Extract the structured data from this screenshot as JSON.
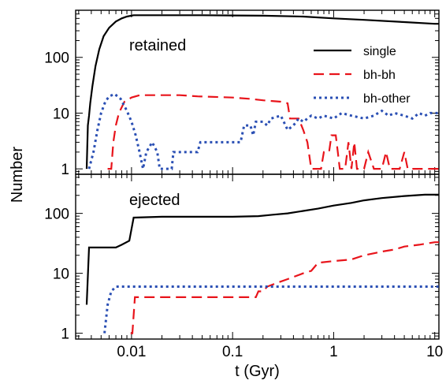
{
  "chart_data": {
    "type": "line",
    "xlabel": "t (Gyr)",
    "ylabel": "Number",
    "xscale": "log",
    "yscale": "log",
    "xlim": [
      0.0028,
      11
    ],
    "x_ticks": [
      {
        "value": 0.01,
        "label": "0.01"
      },
      {
        "value": 0.1,
        "label": "0.1"
      },
      {
        "value": 1,
        "label": "1"
      },
      {
        "value": 10,
        "label": "10"
      }
    ],
    "y_ticks": [
      {
        "value": 1,
        "label": "1"
      },
      {
        "value": 10,
        "label": "10"
      },
      {
        "value": 100,
        "label": "100"
      }
    ],
    "colors": {
      "single": "#000000",
      "bh-bh": "#e8141b",
      "bh-other": "#2a4fb4"
    },
    "legend": {
      "placement": "top-right",
      "entries": [
        {
          "label": "single",
          "style": "solid",
          "color": "#000000"
        },
        {
          "label": "bh-bh",
          "style": "dashed",
          "color": "#e8141b"
        },
        {
          "label": "bh-other",
          "style": "dotted",
          "color": "#2a4fb4"
        }
      ]
    },
    "panels": [
      {
        "label": "retained",
        "ylim": [
          0.8,
          700
        ],
        "series": [
          {
            "key": "single",
            "style": "solid",
            "color": "#000000",
            "points": [
              [
                0.0036,
                1
              ],
              [
                0.0037,
                6
              ],
              [
                0.0038,
                9
              ],
              [
                0.0039,
                15
              ],
              [
                0.0041,
                30
              ],
              [
                0.0044,
                70
              ],
              [
                0.0048,
                140
              ],
              [
                0.0053,
                240
              ],
              [
                0.006,
                340
              ],
              [
                0.007,
                440
              ],
              [
                0.008,
                500
              ],
              [
                0.009,
                540
              ],
              [
                0.0105,
                570
              ],
              [
                0.02,
                570
              ],
              [
                0.05,
                570
              ],
              [
                0.1,
                565
              ],
              [
                0.2,
                560
              ],
              [
                0.5,
                540
              ],
              [
                1,
                500
              ],
              [
                2,
                470
              ],
              [
                5,
                430
              ],
              [
                10,
                400
              ],
              [
                11,
                400
              ]
            ]
          },
          {
            "key": "bh-bh",
            "style": "dashed",
            "color": "#e8141b",
            "points": [
              [
                0.0058,
                1
              ],
              [
                0.0063,
                1
              ],
              [
                0.0066,
                3
              ],
              [
                0.007,
                6
              ],
              [
                0.0075,
                10
              ],
              [
                0.0085,
                16
              ],
              [
                0.01,
                19
              ],
              [
                0.012,
                21
              ],
              [
                0.03,
                21
              ],
              [
                0.045,
                20
              ],
              [
                0.1,
                19
              ],
              [
                0.15,
                18
              ],
              [
                0.2,
                17
              ],
              [
                0.3,
                16
              ],
              [
                0.35,
                15
              ],
              [
                0.37,
                8
              ],
              [
                0.45,
                8
              ],
              [
                0.5,
                5
              ],
              [
                0.55,
                3
              ],
              [
                0.6,
                1
              ],
              [
                0.75,
                1
              ],
              [
                0.8,
                2
              ],
              [
                0.85,
                2
              ],
              [
                0.9,
                2
              ],
              [
                0.95,
                4
              ],
              [
                1.05,
                4
              ],
              [
                1.1,
                2
              ],
              [
                1.15,
                1
              ],
              [
                1.3,
                1
              ],
              [
                1.4,
                3
              ],
              [
                1.5,
                1
              ],
              [
                1.6,
                3
              ],
              [
                1.7,
                1
              ],
              [
                2,
                1
              ],
              [
                2.2,
                2
              ],
              [
                2.5,
                1
              ],
              [
                3,
                1
              ],
              [
                3.3,
                2
              ],
              [
                3.6,
                1
              ],
              [
                4.5,
                1
              ],
              [
                5,
                2
              ],
              [
                5.4,
                1
              ],
              [
                10,
                1
              ],
              [
                11,
                1
              ]
            ]
          },
          {
            "key": "bh-other",
            "style": "dotted",
            "color": "#2a4fb4",
            "points": [
              [
                0.0038,
                1
              ],
              [
                0.0042,
                2
              ],
              [
                0.0046,
                5
              ],
              [
                0.005,
                10
              ],
              [
                0.0055,
                16
              ],
              [
                0.006,
                20
              ],
              [
                0.0068,
                22
              ],
              [
                0.0078,
                18
              ],
              [
                0.009,
                11
              ],
              [
                0.01,
                7
              ],
              [
                0.011,
                4
              ],
              [
                0.012,
                2
              ],
              [
                0.013,
                1
              ],
              [
                0.014,
                2
              ],
              [
                0.016,
                3
              ],
              [
                0.018,
                2
              ],
              [
                0.019,
                1
              ],
              [
                0.025,
                1
              ],
              [
                0.026,
                2
              ],
              [
                0.045,
                2
              ],
              [
                0.048,
                3
              ],
              [
                0.12,
                3
              ],
              [
                0.13,
                6
              ],
              [
                0.15,
                6
              ],
              [
                0.16,
                4
              ],
              [
                0.17,
                7
              ],
              [
                0.2,
                7
              ],
              [
                0.22,
                6
              ],
              [
                0.24,
                8
              ],
              [
                0.3,
                9
              ],
              [
                0.35,
                5
              ],
              [
                0.4,
                6
              ],
              [
                0.45,
                8
              ],
              [
                0.5,
                7
              ],
              [
                0.6,
                9
              ],
              [
                0.7,
                8
              ],
              [
                0.8,
                9
              ],
              [
                1,
                8
              ],
              [
                1.2,
                10
              ],
              [
                1.5,
                9
              ],
              [
                2,
                8
              ],
              [
                2.5,
                9
              ],
              [
                3,
                11
              ],
              [
                3.5,
                9
              ],
              [
                4,
                10
              ],
              [
                5,
                9
              ],
              [
                6,
                8
              ],
              [
                7,
                10
              ],
              [
                8,
                9
              ],
              [
                9,
                10
              ],
              [
                10,
                10
              ],
              [
                11,
                10
              ]
            ]
          }
        ]
      },
      {
        "label": "ejected",
        "ylim": [
          0.8,
          450
        ],
        "series": [
          {
            "key": "single",
            "style": "solid",
            "color": "#000000",
            "points": [
              [
                0.0036,
                3
              ],
              [
                0.0038,
                27
              ],
              [
                0.007,
                27
              ],
              [
                0.008,
                30
              ],
              [
                0.0095,
                35
              ],
              [
                0.0105,
                85
              ],
              [
                0.02,
                88
              ],
              [
                0.05,
                88
              ],
              [
                0.1,
                88
              ],
              [
                0.18,
                90
              ],
              [
                0.25,
                95
              ],
              [
                0.35,
                100
              ],
              [
                0.5,
                110
              ],
              [
                0.7,
                120
              ],
              [
                1,
                135
              ],
              [
                1.5,
                150
              ],
              [
                2,
                165
              ],
              [
                3,
                180
              ],
              [
                5,
                195
              ],
              [
                8,
                205
              ],
              [
                11,
                205
              ]
            ]
          },
          {
            "key": "bh-bh",
            "style": "dashed",
            "color": "#e8141b",
            "points": [
              [
                0.0098,
                1
              ],
              [
                0.0102,
                1
              ],
              [
                0.0108,
                4
              ],
              [
                0.17,
                4
              ],
              [
                0.18,
                5
              ],
              [
                0.2,
                5
              ],
              [
                0.22,
                6
              ],
              [
                0.28,
                7
              ],
              [
                0.35,
                8
              ],
              [
                0.5,
                10
              ],
              [
                0.6,
                11
              ],
              [
                0.7,
                15
              ],
              [
                1,
                16
              ],
              [
                1.5,
                17
              ],
              [
                2,
                20
              ],
              [
                3,
                23
              ],
              [
                4,
                25
              ],
              [
                5,
                28
              ],
              [
                7,
                30
              ],
              [
                10,
                33
              ],
              [
                11,
                33
              ]
            ]
          },
          {
            "key": "bh-other",
            "style": "dotted",
            "color": "#2a4fb4",
            "points": [
              [
                0.0054,
                1
              ],
              [
                0.0058,
                3
              ],
              [
                0.0063,
                5
              ],
              [
                0.007,
                6
              ],
              [
                0.1,
                6
              ],
              [
                1,
                6
              ],
              [
                11,
                6
              ]
            ]
          }
        ]
      }
    ]
  }
}
